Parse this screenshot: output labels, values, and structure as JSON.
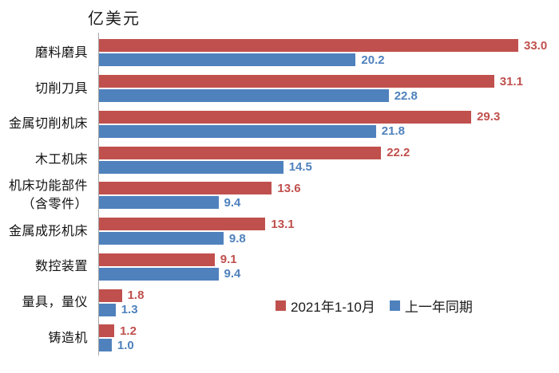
{
  "title": "亿美元",
  "colors": {
    "series_2021": "#C0504D",
    "series_prev": "#4F81BD",
    "axis_line": "#A6A6A6"
  },
  "chart_data": {
    "type": "bar",
    "orientation": "horizontal",
    "title": "亿美元",
    "categories": [
      "磨料磨具",
      "切削刀具",
      "金属切削机床",
      "木工机床",
      "机床功能部件\n（含零件）",
      "金属成形机床",
      "数控装置",
      "量具，量仪",
      "铸造机"
    ],
    "series": [
      {
        "name": "2021年1-10月",
        "key": "series-2021",
        "color": "#C0504D",
        "values": [
          33.0,
          31.1,
          29.3,
          22.2,
          13.6,
          13.1,
          9.1,
          1.8,
          1.2
        ]
      },
      {
        "name": "上一年同期",
        "key": "series-prev-year",
        "color": "#4F81BD",
        "values": [
          20.2,
          22.8,
          21.8,
          14.5,
          9.4,
          9.8,
          9.4,
          1.3,
          1.0
        ]
      }
    ],
    "xlim": [
      0,
      34.5
    ],
    "grid": false,
    "value_labels": true,
    "legend_position": "inside-bottom-right"
  }
}
